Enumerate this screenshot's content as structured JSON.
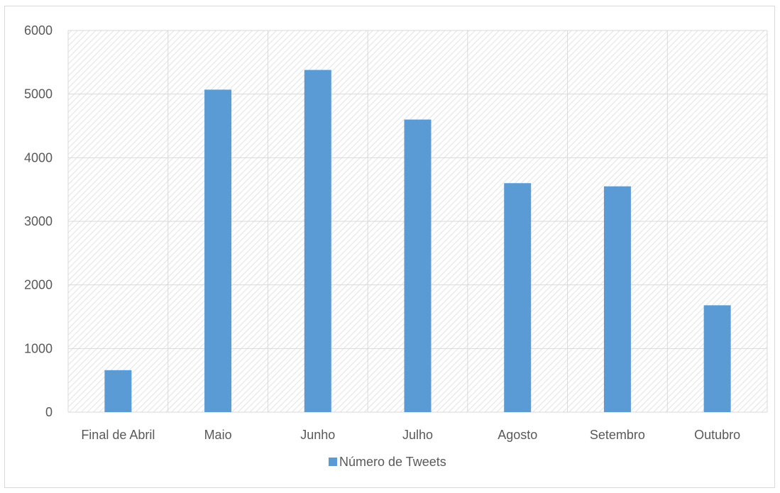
{
  "chart_data": {
    "type": "bar",
    "categories": [
      "Final de Abril",
      "Maio",
      "Junho",
      "Julho",
      "Agosto",
      "Setembro",
      "Outubro"
    ],
    "series": [
      {
        "name": "Número de Tweets",
        "values": [
          660,
          5070,
          5380,
          4600,
          3600,
          3550,
          1680
        ],
        "color": "#5b9bd5"
      }
    ],
    "yticks": [
      0,
      1000,
      2000,
      3000,
      4000,
      5000,
      6000
    ],
    "ylim": [
      0,
      6000
    ],
    "grid": true,
    "legend_position": "bottom",
    "colors": {
      "bar": "#5b9bd5",
      "grid": "#d9d9d9",
      "text": "#595959",
      "hatch": "#e3e3e3"
    }
  }
}
